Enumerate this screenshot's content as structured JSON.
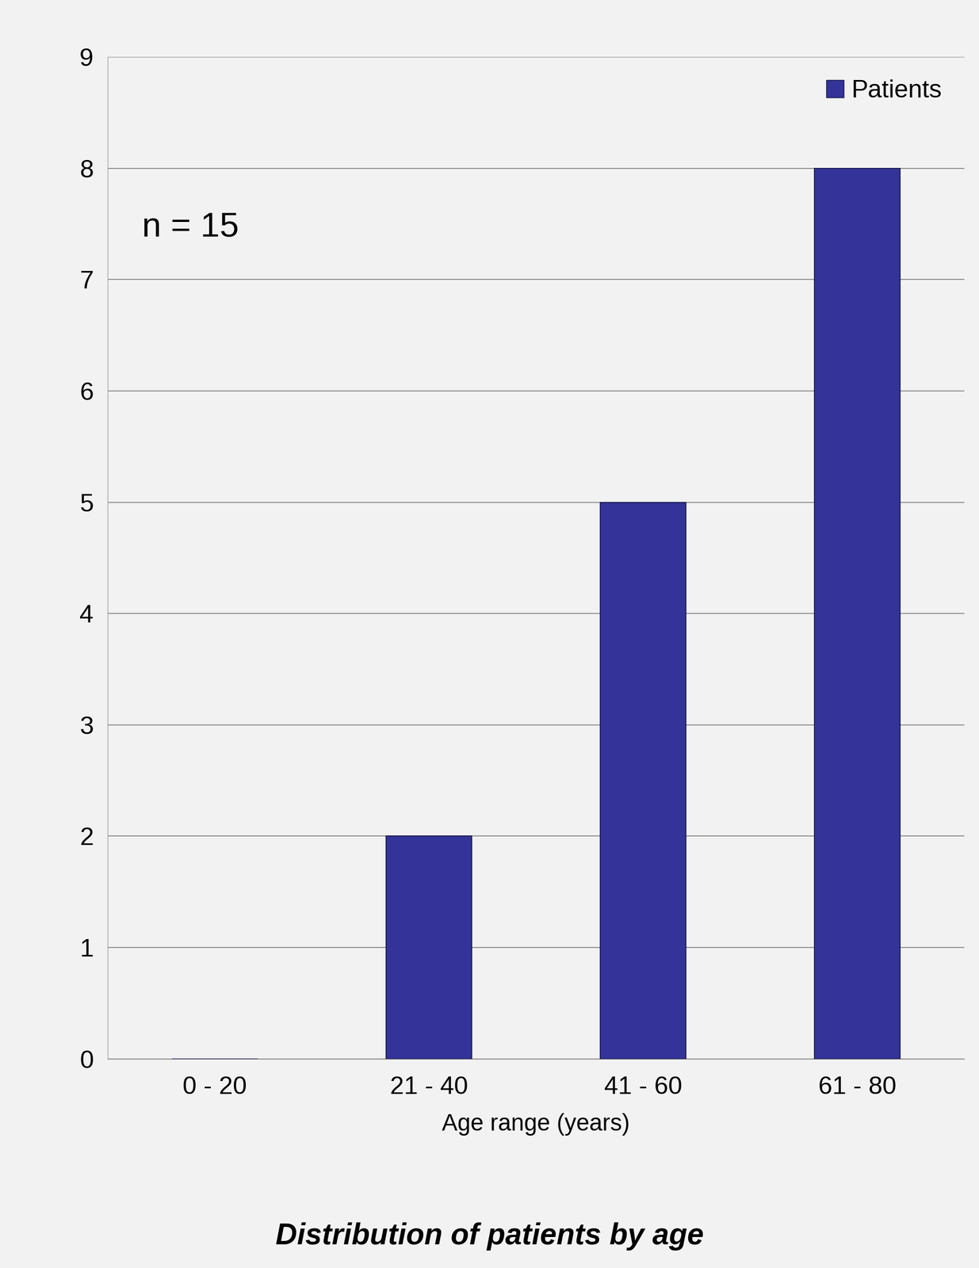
{
  "chart_data": {
    "type": "bar",
    "title": "Distribution of patients by age",
    "annotation": "n = 15",
    "x_label": "Age range (years)",
    "categories": [
      "0 - 20",
      "21 - 40",
      "41 - 60",
      "61 - 80"
    ],
    "series": [
      {
        "name": "Patients",
        "color": "#333399",
        "values": [
          0,
          2,
          5,
          8
        ]
      }
    ],
    "ylim": [
      0,
      9
    ],
    "yticks": [
      0,
      1,
      2,
      3,
      4,
      5,
      6,
      7,
      8,
      9
    ],
    "grid": true,
    "legend": "upper right"
  }
}
